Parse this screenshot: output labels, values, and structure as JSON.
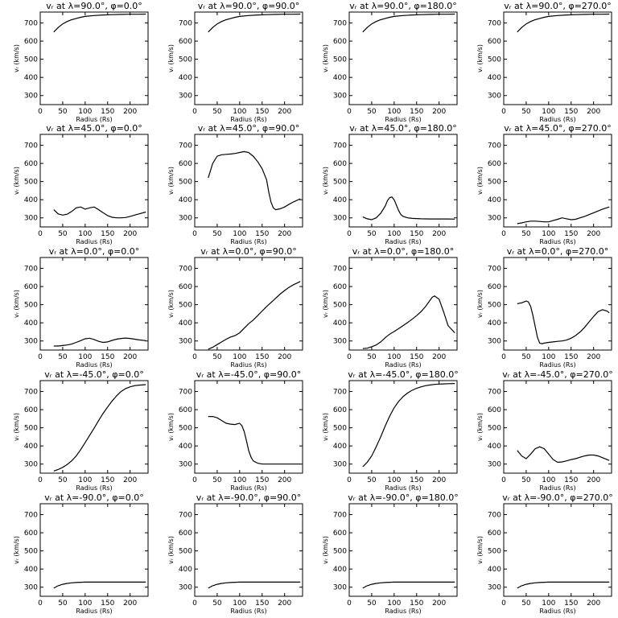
{
  "chart_data": [
    {
      "type": "line",
      "title": "vᵣ at λ=90.0°, φ=0.0°",
      "xlabel": "Radius (Rs)",
      "ylabel": "vᵣ (km/s)",
      "xlim": [
        0,
        240
      ],
      "ylim": [
        250,
        760
      ],
      "x": [
        30,
        40,
        50,
        60,
        70,
        80,
        90,
        100,
        120,
        140,
        160,
        180,
        200,
        220,
        235
      ],
      "y": [
        650,
        675,
        695,
        708,
        718,
        725,
        731,
        736,
        741,
        744,
        746,
        747,
        748,
        748,
        749
      ]
    },
    {
      "type": "line",
      "title": "vᵣ at λ=90.0°, φ=90.0°",
      "xlabel": "Radius (Rs)",
      "ylabel": "vᵣ (km/s)",
      "xlim": [
        0,
        240
      ],
      "ylim": [
        250,
        760
      ],
      "x": [
        30,
        40,
        50,
        60,
        70,
        80,
        90,
        100,
        120,
        140,
        160,
        180,
        200,
        220,
        235
      ],
      "y": [
        650,
        675,
        695,
        708,
        718,
        725,
        731,
        736,
        741,
        744,
        746,
        747,
        748,
        748,
        749
      ]
    },
    {
      "type": "line",
      "title": "vᵣ at λ=90.0°, φ=180.0°",
      "xlabel": "Radius (Rs)",
      "ylabel": "vᵣ (km/s)",
      "xlim": [
        0,
        240
      ],
      "ylim": [
        250,
        760
      ],
      "x": [
        30,
        40,
        50,
        60,
        70,
        80,
        90,
        100,
        120,
        140,
        160,
        180,
        200,
        220,
        235
      ],
      "y": [
        650,
        675,
        695,
        708,
        718,
        725,
        731,
        736,
        741,
        744,
        746,
        747,
        748,
        748,
        749
      ]
    },
    {
      "type": "line",
      "title": "vᵣ at λ=90.0°, φ=270.0°",
      "xlabel": "Radius (Rs)",
      "ylabel": "vᵣ (km/s)",
      "xlim": [
        0,
        240
      ],
      "ylim": [
        250,
        760
      ],
      "x": [
        30,
        40,
        50,
        60,
        70,
        80,
        90,
        100,
        120,
        140,
        160,
        180,
        200,
        220,
        235
      ],
      "y": [
        650,
        675,
        695,
        708,
        718,
        725,
        731,
        736,
        741,
        744,
        746,
        747,
        748,
        748,
        749
      ]
    },
    {
      "type": "line",
      "title": "vᵣ at λ=45.0°, φ=0.0°",
      "xlabel": "Radius (Rs)",
      "ylabel": "vᵣ (km/s)",
      "xlim": [
        0,
        240
      ],
      "ylim": [
        250,
        760
      ],
      "x": [
        30,
        40,
        50,
        60,
        70,
        80,
        90,
        100,
        110,
        120,
        130,
        140,
        150,
        160,
        170,
        180,
        190,
        200,
        210,
        220,
        235
      ],
      "y": [
        345,
        322,
        315,
        320,
        335,
        355,
        360,
        348,
        355,
        360,
        345,
        328,
        312,
        303,
        300,
        300,
        302,
        308,
        315,
        322,
        332
      ]
    },
    {
      "type": "line",
      "title": "vᵣ at λ=45.0°, φ=90.0°",
      "xlabel": "Radius (Rs)",
      "ylabel": "vᵣ (km/s)",
      "xlim": [
        0,
        240
      ],
      "ylim": [
        250,
        760
      ],
      "x": [
        30,
        40,
        50,
        60,
        70,
        80,
        90,
        100,
        110,
        120,
        130,
        140,
        150,
        160,
        165,
        170,
        175,
        180,
        190,
        200,
        210,
        220,
        235
      ],
      "y": [
        520,
        600,
        640,
        648,
        650,
        652,
        655,
        660,
        665,
        660,
        640,
        610,
        570,
        510,
        440,
        385,
        355,
        345,
        350,
        360,
        375,
        388,
        405
      ]
    },
    {
      "type": "line",
      "title": "vᵣ at λ=45.0°, φ=180.0°",
      "xlabel": "Radius (Rs)",
      "ylabel": "vᵣ (km/s)",
      "xlim": [
        0,
        240
      ],
      "ylim": [
        250,
        760
      ],
      "x": [
        30,
        40,
        50,
        60,
        70,
        80,
        85,
        90,
        95,
        100,
        105,
        110,
        115,
        120,
        130,
        140,
        150,
        160,
        180,
        200,
        220,
        235
      ],
      "y": [
        305,
        295,
        290,
        300,
        325,
        365,
        395,
        412,
        415,
        400,
        370,
        340,
        318,
        308,
        300,
        297,
        296,
        295,
        294,
        294,
        294,
        293
      ]
    },
    {
      "type": "line",
      "title": "vᵣ at λ=45.0°, φ=270.0°",
      "xlabel": "Radius (Rs)",
      "ylabel": "vᵣ (km/s)",
      "xlim": [
        0,
        240
      ],
      "ylim": [
        250,
        760
      ],
      "x": [
        30,
        40,
        50,
        60,
        70,
        80,
        90,
        100,
        110,
        120,
        130,
        140,
        150,
        160,
        170,
        180,
        190,
        200,
        210,
        220,
        235
      ],
      "y": [
        268,
        272,
        278,
        282,
        282,
        280,
        278,
        278,
        285,
        292,
        300,
        295,
        290,
        292,
        300,
        308,
        318,
        328,
        338,
        348,
        360
      ]
    },
    {
      "type": "line",
      "title": "vᵣ at λ=0.0°, φ=0.0°",
      "xlabel": "Radius (Rs)",
      "ylabel": "vᵣ (km/s)",
      "xlim": [
        0,
        240
      ],
      "ylim": [
        250,
        760
      ],
      "x": [
        30,
        40,
        50,
        60,
        70,
        80,
        90,
        100,
        110,
        120,
        130,
        140,
        150,
        160,
        170,
        180,
        190,
        200,
        210,
        220,
        235
      ],
      "y": [
        272,
        272,
        275,
        278,
        283,
        292,
        302,
        312,
        315,
        308,
        298,
        292,
        295,
        303,
        310,
        314,
        316,
        314,
        310,
        306,
        302
      ]
    },
    {
      "type": "line",
      "title": "vᵣ at λ=0.0°, φ=90.0°",
      "xlabel": "Radius (Rs)",
      "ylabel": "vᵣ (km/s)",
      "xlim": [
        0,
        240
      ],
      "ylim": [
        250,
        760
      ],
      "x": [
        30,
        40,
        50,
        60,
        70,
        80,
        90,
        100,
        110,
        120,
        130,
        140,
        150,
        160,
        170,
        180,
        190,
        200,
        210,
        220,
        235
      ],
      "y": [
        255,
        265,
        280,
        295,
        310,
        322,
        330,
        345,
        370,
        395,
        415,
        440,
        465,
        490,
        512,
        535,
        558,
        578,
        596,
        610,
        628
      ]
    },
    {
      "type": "line",
      "title": "vᵣ at λ=0.0°, φ=180.0°",
      "xlabel": "Radius (Rs)",
      "ylabel": "vᵣ (km/s)",
      "xlim": [
        0,
        240
      ],
      "ylim": [
        250,
        760
      ],
      "x": [
        30,
        40,
        50,
        60,
        70,
        80,
        90,
        100,
        110,
        120,
        130,
        140,
        150,
        160,
        170,
        180,
        185,
        190,
        200,
        210,
        220,
        235
      ],
      "y": [
        258,
        260,
        268,
        278,
        295,
        318,
        338,
        352,
        368,
        385,
        402,
        420,
        440,
        462,
        490,
        525,
        542,
        548,
        530,
        460,
        385,
        345
      ]
    },
    {
      "type": "line",
      "title": "vᵣ at λ=0.0°, φ=270.0°",
      "xlabel": "Radius (Rs)",
      "ylabel": "vᵣ (km/s)",
      "xlim": [
        0,
        240
      ],
      "ylim": [
        250,
        760
      ],
      "x": [
        30,
        35,
        40,
        45,
        50,
        55,
        60,
        65,
        70,
        75,
        80,
        85,
        90,
        100,
        110,
        120,
        130,
        140,
        150,
        160,
        170,
        180,
        190,
        200,
        210,
        220,
        230,
        235
      ],
      "y": [
        505,
        508,
        510,
        515,
        520,
        515,
        490,
        440,
        380,
        320,
        288,
        285,
        288,
        292,
        295,
        298,
        300,
        305,
        315,
        330,
        350,
        375,
        405,
        435,
        462,
        472,
        465,
        455
      ]
    },
    {
      "type": "line",
      "title": "vᵣ at λ=-45.0°, φ=0.0°",
      "xlabel": "Radius (Rs)",
      "ylabel": "vᵣ (km/s)",
      "xlim": [
        0,
        240
      ],
      "ylim": [
        250,
        760
      ],
      "x": [
        30,
        40,
        50,
        60,
        70,
        80,
        90,
        100,
        110,
        120,
        130,
        140,
        150,
        160,
        170,
        180,
        190,
        200,
        210,
        220,
        235
      ],
      "y": [
        262,
        270,
        282,
        298,
        318,
        345,
        380,
        418,
        458,
        498,
        540,
        580,
        615,
        648,
        676,
        700,
        716,
        726,
        732,
        735,
        738
      ]
    },
    {
      "type": "line",
      "title": "vᵣ at λ=-45.0°, φ=90.0°",
      "xlabel": "Radius (Rs)",
      "ylabel": "vᵣ (km/s)",
      "xlim": [
        0,
        240
      ],
      "ylim": [
        250,
        760
      ],
      "x": [
        30,
        40,
        50,
        60,
        70,
        80,
        90,
        95,
        100,
        105,
        110,
        115,
        120,
        125,
        130,
        140,
        150,
        160,
        170,
        180,
        190,
        200,
        210,
        220,
        235
      ],
      "y": [
        562,
        562,
        555,
        540,
        525,
        520,
        518,
        522,
        525,
        512,
        480,
        430,
        375,
        340,
        318,
        305,
        300,
        300,
        300,
        300,
        300,
        300,
        300,
        300,
        300
      ]
    },
    {
      "type": "line",
      "title": "vᵣ at λ=-45.0°, φ=180.0°",
      "xlabel": "Radius (Rs)",
      "ylabel": "vᵣ (km/s)",
      "xlim": [
        0,
        240
      ],
      "ylim": [
        250,
        760
      ],
      "x": [
        30,
        40,
        50,
        60,
        70,
        80,
        90,
        100,
        110,
        120,
        130,
        140,
        150,
        160,
        170,
        180,
        190,
        200,
        210,
        220,
        235
      ],
      "y": [
        285,
        310,
        345,
        395,
        450,
        510,
        565,
        610,
        645,
        672,
        692,
        707,
        718,
        726,
        732,
        736,
        739,
        741,
        742,
        743,
        744
      ]
    },
    {
      "type": "line",
      "title": "vᵣ at λ=-45.0°, φ=270.0°",
      "xlabel": "Radius (Rs)",
      "ylabel": "vᵣ (km/s)",
      "xlim": [
        0,
        240
      ],
      "ylim": [
        250,
        760
      ],
      "x": [
        30,
        40,
        50,
        60,
        70,
        80,
        90,
        100,
        110,
        120,
        130,
        140,
        150,
        160,
        170,
        180,
        190,
        200,
        210,
        220,
        235
      ],
      "y": [
        375,
        345,
        330,
        355,
        385,
        395,
        385,
        355,
        325,
        310,
        312,
        318,
        325,
        330,
        338,
        345,
        350,
        350,
        345,
        335,
        320
      ]
    },
    {
      "type": "line",
      "title": "vᵣ at λ=-90.0°, φ=0.0°",
      "xlabel": "Radius (Rs)",
      "ylabel": "vᵣ (km/s)",
      "xlim": [
        0,
        240
      ],
      "ylim": [
        250,
        760
      ],
      "x": [
        30,
        40,
        50,
        60,
        70,
        80,
        90,
        100,
        120,
        140,
        160,
        180,
        200,
        220,
        235
      ],
      "y": [
        295,
        308,
        316,
        321,
        324,
        326,
        327,
        328,
        328,
        328,
        328,
        328,
        328,
        328,
        328
      ]
    },
    {
      "type": "line",
      "title": "vᵣ at λ=-90.0°, φ=90.0°",
      "xlabel": "Radius (Rs)",
      "ylabel": "vᵣ (km/s)",
      "xlim": [
        0,
        240
      ],
      "ylim": [
        250,
        760
      ],
      "x": [
        30,
        40,
        50,
        60,
        70,
        80,
        90,
        100,
        120,
        140,
        160,
        180,
        200,
        220,
        235
      ],
      "y": [
        295,
        308,
        316,
        321,
        324,
        326,
        327,
        328,
        328,
        328,
        328,
        328,
        328,
        328,
        328
      ]
    },
    {
      "type": "line",
      "title": "vᵣ at λ=-90.0°, φ=180.0°",
      "xlabel": "Radius (Rs)",
      "ylabel": "vᵣ (km/s)",
      "xlim": [
        0,
        240
      ],
      "ylim": [
        250,
        760
      ],
      "x": [
        30,
        40,
        50,
        60,
        70,
        80,
        90,
        100,
        120,
        140,
        160,
        180,
        200,
        220,
        235
      ],
      "y": [
        295,
        308,
        316,
        321,
        324,
        326,
        327,
        328,
        328,
        328,
        328,
        328,
        328,
        328,
        328
      ]
    },
    {
      "type": "line",
      "title": "vᵣ at λ=-90.0°, φ=270.0°",
      "xlabel": "Radius (Rs)",
      "ylabel": "vᵣ (km/s)",
      "xlim": [
        0,
        240
      ],
      "ylim": [
        250,
        760
      ],
      "x": [
        30,
        40,
        50,
        60,
        70,
        80,
        90,
        100,
        120,
        140,
        160,
        180,
        200,
        220,
        235
      ],
      "y": [
        295,
        308,
        316,
        321,
        324,
        326,
        327,
        328,
        328,
        328,
        328,
        328,
        328,
        328,
        328
      ]
    }
  ],
  "axes": {
    "x_ticks": [
      0,
      50,
      100,
      150,
      200
    ],
    "y_ticks": [
      300,
      400,
      500,
      600,
      700
    ]
  },
  "style": {
    "line_color": "#000000",
    "background": "#ffffff"
  }
}
